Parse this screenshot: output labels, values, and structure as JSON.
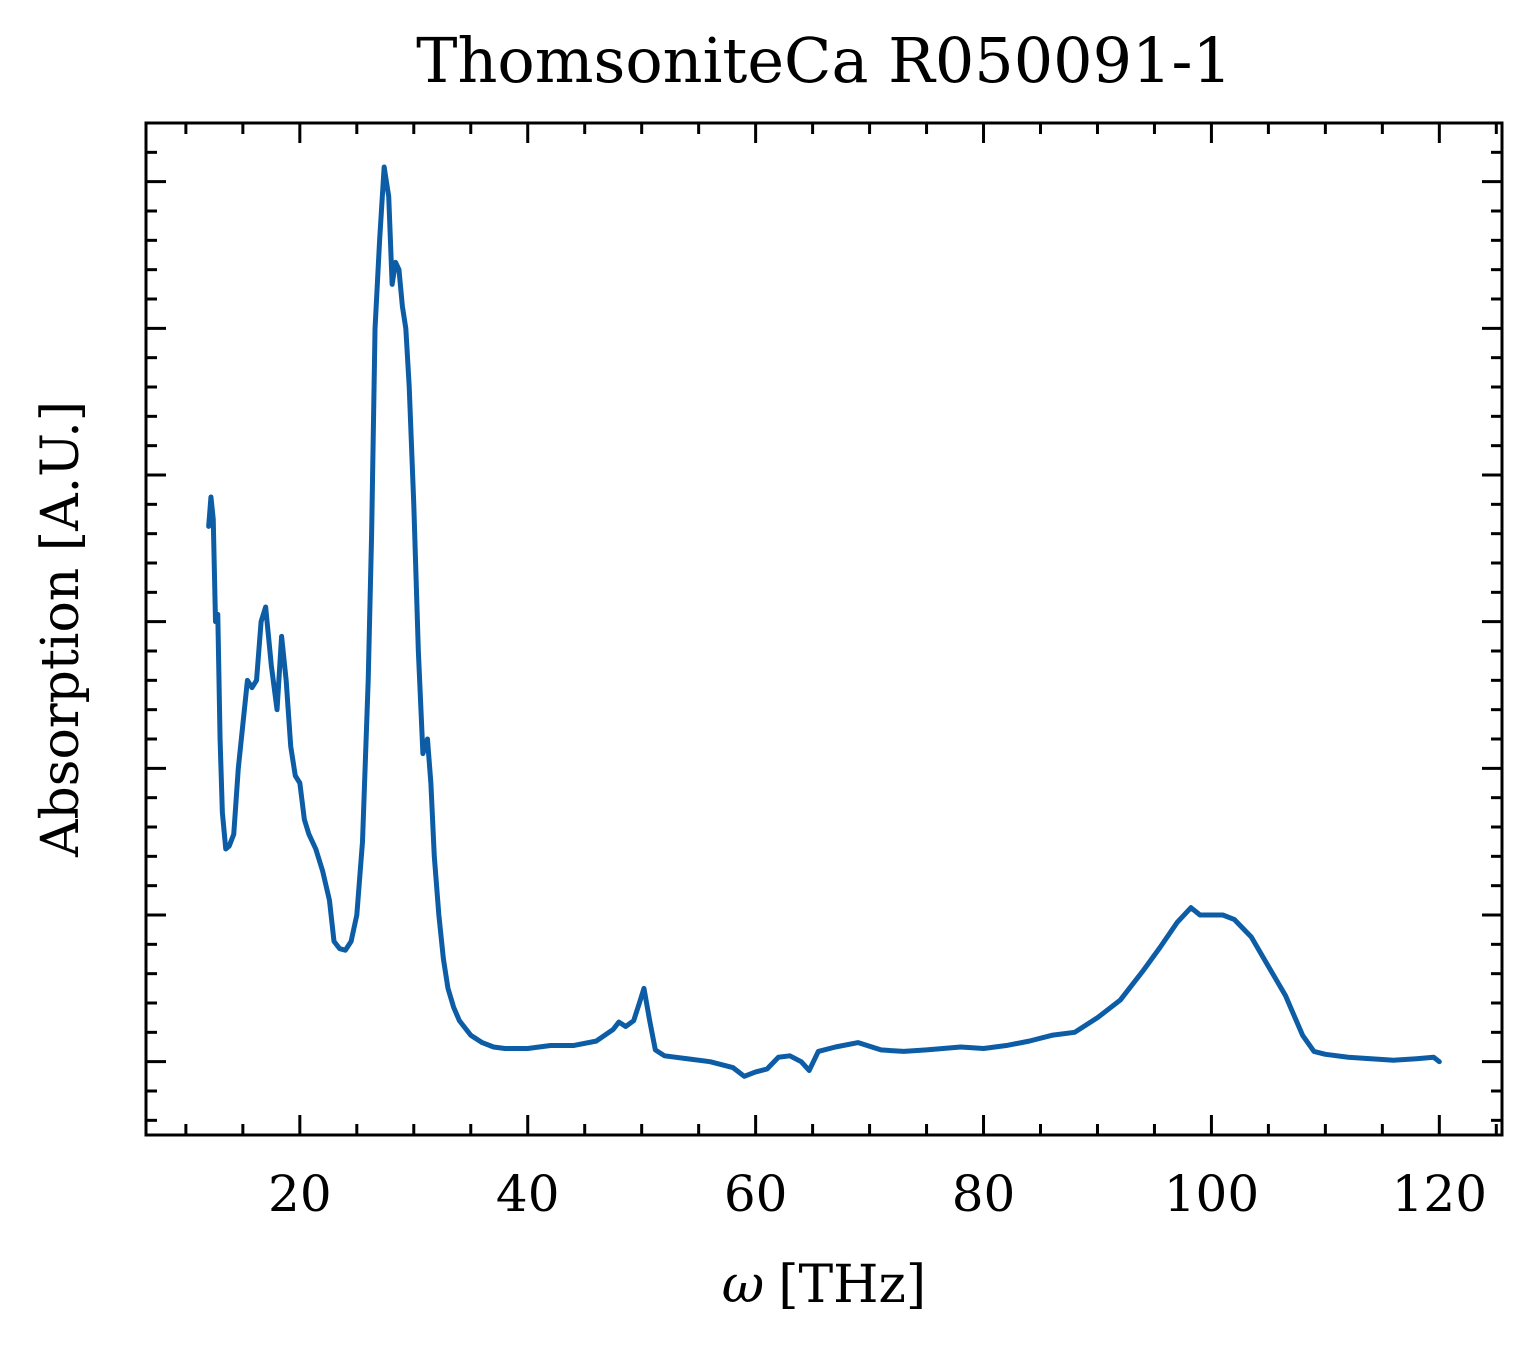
{
  "chart_data": {
    "type": "line",
    "title": "ThomsoniteCa R050091-1",
    "xlabel_symbol": "ω",
    "xlabel_unit": "[THz]",
    "ylabel": "Absorption [A.U.]",
    "xlim": [
      6.5,
      125.5
    ],
    "ylim": [
      -0.05,
      0.64
    ],
    "x_ticks": [
      20,
      40,
      60,
      80,
      100,
      120
    ],
    "x_tick_labels": [
      "20",
      "40",
      "60",
      "80",
      "100",
      "120"
    ],
    "x_minor_step": 5,
    "y_major_ticks": [
      0.0,
      0.1,
      0.2,
      0.3,
      0.4,
      0.5,
      0.6
    ],
    "y_minor_step": 0.02,
    "y_tick_labels_visible": false,
    "grid": false,
    "legend": "none",
    "colors": {
      "line": "#0C5DA5",
      "axes": "#000000",
      "background": "#ffffff"
    },
    "series": [
      {
        "name": "ThomsoniteCa R050091-1",
        "x": [
          12.0,
          12.2,
          12.4,
          12.6,
          12.8,
          13.0,
          13.2,
          13.5,
          13.8,
          14.2,
          14.6,
          15.0,
          15.4,
          15.8,
          16.2,
          16.6,
          17.0,
          17.5,
          18.0,
          18.4,
          18.8,
          19.2,
          19.6,
          20.0,
          20.4,
          20.8,
          21.4,
          22.0,
          22.6,
          23.0,
          23.5,
          24.0,
          24.5,
          25.0,
          25.5,
          26.0,
          26.3,
          26.6,
          27.0,
          27.4,
          27.8,
          28.1,
          28.4,
          28.7,
          29.0,
          29.3,
          29.6,
          30.0,
          30.4,
          30.8,
          31.2,
          31.5,
          31.8,
          32.2,
          32.6,
          33.0,
          33.5,
          34.0,
          35.0,
          36.0,
          37.0,
          38.0,
          40.0,
          42.0,
          44.0,
          46.0,
          47.5,
          48.0,
          48.6,
          49.3,
          49.8,
          50.2,
          50.7,
          51.2,
          52.0,
          54.0,
          56.0,
          58.0,
          59.0,
          60.0,
          61.0,
          62.0,
          63.0,
          64.0,
          64.7,
          65.5,
          67.0,
          69.0,
          71.0,
          73.0,
          75.0,
          78.0,
          80.0,
          82.0,
          84.0,
          86.0,
          88.0,
          90.0,
          92.0,
          94.0,
          95.5,
          97.0,
          98.2,
          99.0,
          100.0,
          101.0,
          102.0,
          103.5,
          105.0,
          106.5,
          108.0,
          109.0,
          110.0,
          112.0,
          114.0,
          116.0,
          118.0,
          119.5,
          120.0
        ],
        "y": [
          0.365,
          0.385,
          0.37,
          0.3,
          0.305,
          0.22,
          0.17,
          0.145,
          0.147,
          0.155,
          0.2,
          0.23,
          0.26,
          0.255,
          0.26,
          0.3,
          0.31,
          0.27,
          0.24,
          0.29,
          0.26,
          0.215,
          0.195,
          0.19,
          0.165,
          0.155,
          0.145,
          0.13,
          0.11,
          0.082,
          0.077,
          0.076,
          0.082,
          0.1,
          0.15,
          0.26,
          0.36,
          0.5,
          0.56,
          0.61,
          0.59,
          0.53,
          0.545,
          0.54,
          0.515,
          0.5,
          0.46,
          0.38,
          0.28,
          0.21,
          0.22,
          0.19,
          0.14,
          0.1,
          0.07,
          0.05,
          0.037,
          0.028,
          0.018,
          0.013,
          0.01,
          0.009,
          0.009,
          0.011,
          0.011,
          0.014,
          0.022,
          0.027,
          0.024,
          0.028,
          0.04,
          0.05,
          0.028,
          0.008,
          0.004,
          0.002,
          0.0,
          -0.004,
          -0.01,
          -0.007,
          -0.005,
          0.003,
          0.004,
          0.0,
          -0.006,
          0.007,
          0.01,
          0.013,
          0.008,
          0.007,
          0.008,
          0.01,
          0.009,
          0.011,
          0.014,
          0.018,
          0.02,
          0.03,
          0.042,
          0.062,
          0.078,
          0.095,
          0.105,
          0.1,
          0.1,
          0.1,
          0.097,
          0.085,
          0.065,
          0.045,
          0.018,
          0.007,
          0.005,
          0.003,
          0.002,
          0.001,
          0.002,
          0.003,
          0.0
        ]
      }
    ]
  }
}
